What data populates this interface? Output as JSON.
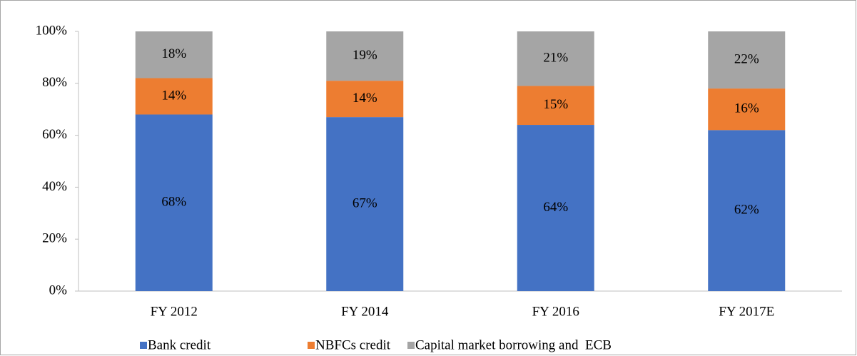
{
  "chart_data": {
    "type": "stacked_bar",
    "categories": [
      "FY 2012",
      "FY 2014",
      "FY 2016",
      "FY 2017E"
    ],
    "series": [
      {
        "name": "Bank credit",
        "color": "#4472c4",
        "values": [
          68,
          67,
          64,
          62
        ],
        "value_labels": [
          "68%",
          "67%",
          "64%",
          "62%"
        ]
      },
      {
        "name": "NBFCs credit",
        "color": "#ed7d31",
        "values": [
          14,
          14,
          15,
          16
        ],
        "value_labels": [
          "14%",
          "14%",
          "15%",
          "16%"
        ]
      },
      {
        "name": "Capital market borrowing and  ECB",
        "color": "#a5a5a5",
        "values": [
          18,
          19,
          21,
          22
        ],
        "value_labels": [
          "18%",
          "19%",
          "21%",
          "22%"
        ]
      }
    ],
    "ylim": [
      0,
      100
    ],
    "yticks": [
      {
        "value": 0,
        "label": "0%"
      },
      {
        "value": 20,
        "label": "20%"
      },
      {
        "value": 40,
        "label": "40%"
      },
      {
        "value": 60,
        "label": "60%"
      },
      {
        "value": 80,
        "label": "80%"
      },
      {
        "value": 100,
        "label": "100%"
      }
    ],
    "grid": false,
    "legend": "bottom"
  }
}
